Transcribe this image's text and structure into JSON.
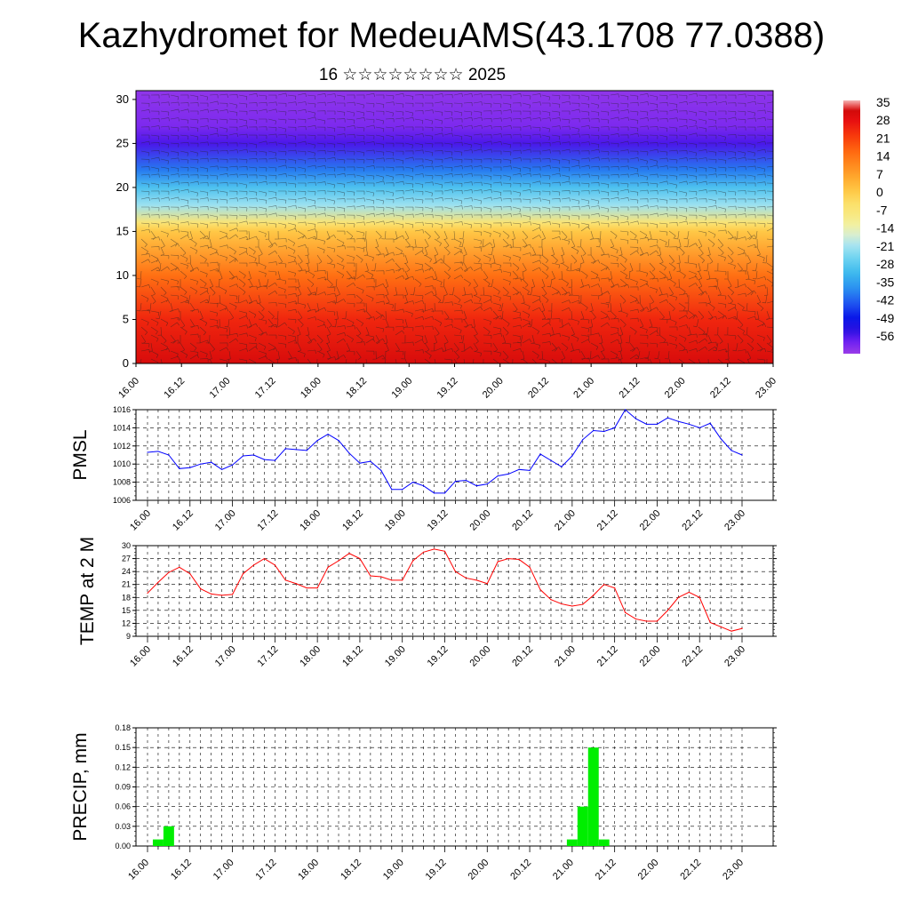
{
  "header": {
    "title": "Kazhydromet for MedeuAMS(43.1708 77.0388)",
    "subtitle": "16 ☆☆☆☆☆☆☆☆ 2025"
  },
  "colors": {
    "pmsl_line": "#0000ff",
    "temp_line": "#ff0000",
    "precip_bar": "#00ee00",
    "grid": "#000000"
  },
  "chart_data": [
    {
      "type": "heatmap",
      "title": "",
      "ylim": [
        0,
        31
      ],
      "yticks": [
        0,
        5,
        10,
        15,
        20,
        25,
        30
      ],
      "xticks": [
        "16.00",
        "16.12",
        "17.00",
        "17.12",
        "18.00",
        "18.12",
        "19.00",
        "19.12",
        "20.00",
        "20.12",
        "21.00",
        "21.12",
        "22.00",
        "22.12",
        "23.00"
      ],
      "colorbar": {
        "labels": [
          "35",
          "28",
          "21",
          "14",
          "7",
          "0",
          "-7",
          "-14",
          "-21",
          "-28",
          "-35",
          "-42",
          "-49",
          "-56"
        ],
        "range": [
          -63,
          35
        ]
      },
      "overlay": "wind barbs",
      "temperature_profile_levels": [
        0,
        5,
        10,
        15,
        16,
        18,
        20,
        22,
        25,
        27,
        31
      ],
      "temperature_profile_values": [
        30,
        24,
        14,
        0,
        -7,
        -22,
        -30,
        -40,
        -56,
        -60,
        -62
      ]
    },
    {
      "type": "line",
      "ylabel": "PMSL",
      "ylim": [
        1006,
        1016
      ],
      "yticks": [
        "1006",
        "1008",
        "1010",
        "1012",
        "1014",
        "1016"
      ],
      "xticks": [
        "16.00",
        "16.12",
        "17.00",
        "17.12",
        "18.00",
        "18.12",
        "19.00",
        "19.12",
        "20.00",
        "20.12",
        "21.00",
        "21.12",
        "22.00",
        "22.12",
        "23.00"
      ],
      "x_step_hours": 3,
      "series": [
        {
          "values": [
            1011.3,
            1011.4,
            1011.0,
            1009.5,
            1009.6,
            1010.0,
            1010.2,
            1009.4,
            1009.9,
            1010.9,
            1011.0,
            1010.5,
            1010.4,
            1011.7,
            1011.6,
            1011.5,
            1012.6,
            1013.3,
            1012.6,
            1011.2,
            1010.1,
            1010.3,
            1009.3,
            1007.2,
            1007.2,
            1008.0,
            1007.6,
            1006.8,
            1006.8,
            1008.1,
            1008.2,
            1007.6,
            1007.8,
            1008.7,
            1008.9,
            1009.4,
            1009.3,
            1011.1,
            1010.4,
            1009.7,
            1010.9,
            1012.7,
            1013.7,
            1013.6,
            1014.0,
            1016.0,
            1015.0,
            1014.4,
            1014.4,
            1015.1,
            1014.7,
            1014.4,
            1014.0,
            1014.5,
            1012.8,
            1011.5,
            1011.0
          ]
        }
      ]
    },
    {
      "type": "line",
      "ylabel": "TEMP at 2 M",
      "ylim": [
        9,
        30
      ],
      "yticks": [
        "9",
        "12",
        "15",
        "18",
        "21",
        "24",
        "27",
        "30"
      ],
      "xticks": [
        "16.00",
        "16.12",
        "17.00",
        "17.12",
        "18.00",
        "18.12",
        "19.00",
        "19.12",
        "20.00",
        "20.12",
        "21.00",
        "21.12",
        "22.00",
        "22.12",
        "23.00"
      ],
      "x_step_hours": 3,
      "series": [
        {
          "values": [
            19.0,
            21.5,
            23.8,
            25.0,
            23.5,
            20.0,
            18.8,
            18.5,
            18.7,
            23.5,
            25.5,
            27.0,
            25.5,
            22.0,
            21.2,
            20.2,
            20.2,
            25.0,
            26.5,
            28.2,
            27.0,
            23.0,
            22.8,
            22.0,
            22.0,
            26.5,
            28.5,
            29.2,
            28.7,
            24.0,
            22.5,
            22.0,
            21.2,
            26.3,
            27.0,
            26.8,
            25.0,
            19.8,
            17.5,
            16.5,
            16.0,
            16.4,
            18.5,
            21.0,
            20.2,
            14.5,
            13.0,
            12.5,
            12.5,
            15.0,
            18.0,
            19.2,
            18.0,
            12.2,
            11.2,
            10.2,
            10.8
          ]
        }
      ]
    },
    {
      "type": "bar",
      "ylabel": "PRECIP, mm",
      "ylim": [
        0,
        0.18
      ],
      "yticks": [
        "0.00",
        "0.03",
        "0.06",
        "0.09",
        "0.12",
        "0.15",
        "0.18"
      ],
      "xticks": [
        "16.00",
        "16.12",
        "17.00",
        "17.12",
        "18.00",
        "18.12",
        "19.00",
        "19.12",
        "20.00",
        "20.12",
        "21.00",
        "21.12",
        "22.00",
        "22.12",
        "23.00"
      ],
      "x_step_hours": 3,
      "series": [
        {
          "values": [
            0,
            0.01,
            0.03,
            0,
            0,
            0,
            0,
            0,
            0,
            0,
            0,
            0,
            0,
            0,
            0,
            0,
            0,
            0,
            0,
            0,
            0,
            0,
            0,
            0,
            0,
            0,
            0,
            0,
            0,
            0,
            0,
            0,
            0,
            0,
            0,
            0,
            0,
            0,
            0,
            0,
            0.01,
            0.06,
            0.15,
            0.01,
            0,
            0,
            0,
            0,
            0,
            0,
            0,
            0,
            0,
            0,
            0,
            0,
            0
          ]
        }
      ]
    }
  ]
}
